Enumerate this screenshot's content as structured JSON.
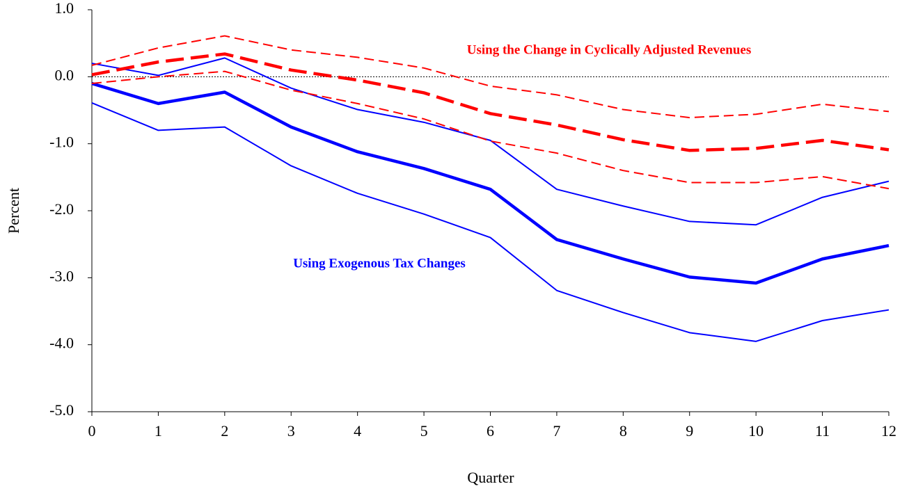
{
  "chart_data": {
    "type": "line",
    "xlabel": "Quarter",
    "ylabel": "Percent",
    "x": [
      0,
      1,
      2,
      3,
      4,
      5,
      6,
      7,
      8,
      9,
      10,
      11,
      12
    ],
    "xlim": [
      0,
      12
    ],
    "xticks": [
      0,
      1,
      2,
      3,
      4,
      5,
      6,
      7,
      8,
      9,
      10,
      11,
      12
    ],
    "ylim": [
      -5,
      1
    ],
    "yticks": [
      {
        "value": 1,
        "label": "1.0"
      },
      {
        "value": 0,
        "label": "0.0"
      },
      {
        "value": -1,
        "label": "-1.0"
      },
      {
        "value": -2,
        "label": "-2.0"
      },
      {
        "value": -3,
        "label": "-3.0"
      },
      {
        "value": -4,
        "label": "-4.0"
      },
      {
        "value": -5,
        "label": "-5.0"
      }
    ],
    "hline": 0,
    "series": [
      {
        "color": "#0000ff",
        "width": 2,
        "dash": false,
        "values": [
          0.2,
          0.02,
          0.28,
          -0.17,
          -0.49,
          -0.68,
          -0.95,
          -1.68,
          -1.93,
          -2.16,
          -2.21,
          -1.8,
          -1.56
        ]
      },
      {
        "color": "#0000ff",
        "width": 2,
        "dash": false,
        "values": [
          -0.39,
          -0.8,
          -0.75,
          -1.33,
          -1.74,
          -2.05,
          -2.4,
          -3.19,
          -3.52,
          -3.82,
          -3.95,
          -3.64,
          -3.48
        ]
      },
      {
        "color": "#0000ff",
        "width": 4.5,
        "dash": false,
        "values": [
          -0.1,
          -0.4,
          -0.23,
          -0.75,
          -1.12,
          -1.37,
          -1.68,
          -2.43,
          -2.72,
          -2.99,
          -3.08,
          -2.72,
          -2.52
        ]
      },
      {
        "color": "#ff0000",
        "width": 2,
        "dash": true,
        "values": [
          0.17,
          0.43,
          0.61,
          0.4,
          0.29,
          0.13,
          -0.14,
          -0.27,
          -0.49,
          -0.61,
          -0.56,
          -0.41,
          -0.52
        ]
      },
      {
        "color": "#ff0000",
        "width": 2,
        "dash": true,
        "values": [
          -0.1,
          0.0,
          0.08,
          -0.2,
          -0.4,
          -0.63,
          -0.96,
          -1.14,
          -1.4,
          -1.58,
          -1.58,
          -1.49,
          -1.67
        ]
      },
      {
        "color": "#ff0000",
        "width": 4.5,
        "dash": true,
        "values": [
          0.03,
          0.22,
          0.34,
          0.1,
          -0.05,
          -0.24,
          -0.55,
          -0.72,
          -0.94,
          -1.1,
          -1.07,
          -0.95,
          -1.09
        ]
      }
    ],
    "annotations": [
      {
        "text": "Using the Change in Cyclically Adjusted Revenues",
        "color": "#ff0000"
      },
      {
        "text": "Using Exogenous Tax Changes",
        "color": "#0000ff"
      }
    ]
  }
}
